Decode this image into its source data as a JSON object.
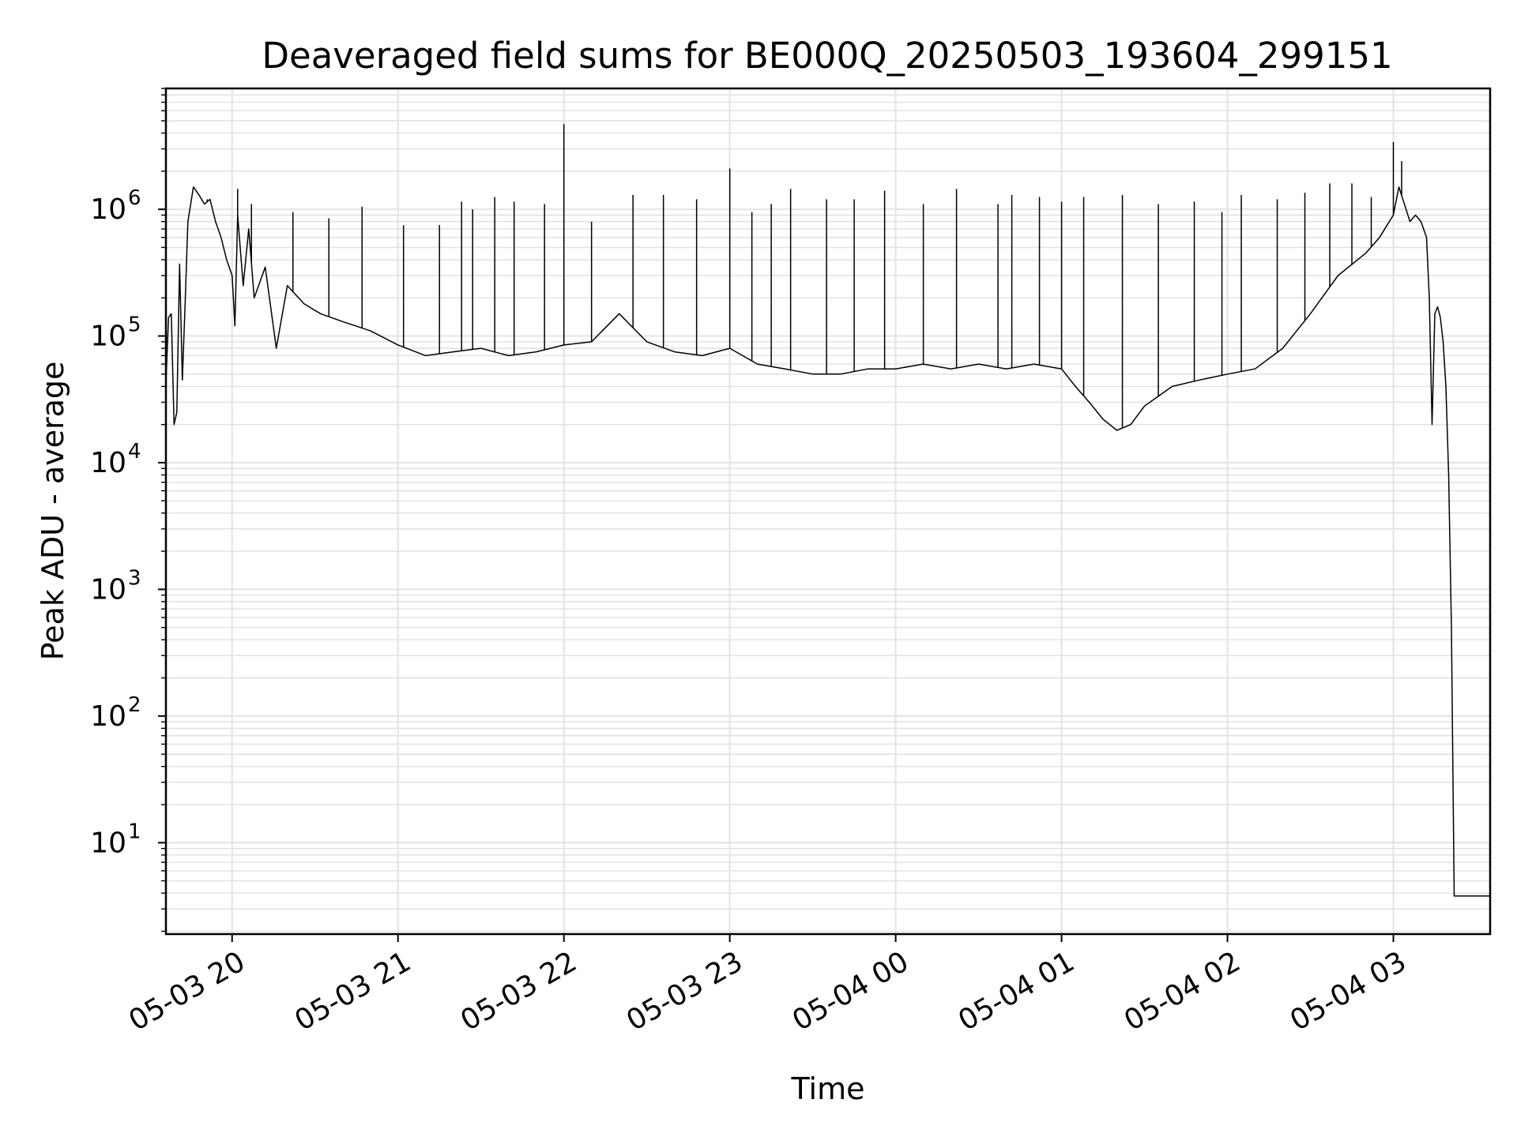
{
  "chart_data": {
    "type": "line",
    "title": "Deaveraged field sums for BE000Q_20250503_193604_299151",
    "xlabel": "Time",
    "ylabel": "Peak ADU - average",
    "yscale": "log",
    "ylim": [
      1.9,
      9000000
    ],
    "xlim": [
      "2025-05-03 19:36:04",
      "2025-05-04 03:35:00"
    ],
    "x_ticks": [
      {
        "t": "2025-05-03 20:00",
        "label": "05-03 20"
      },
      {
        "t": "2025-05-03 21:00",
        "label": "05-03 21"
      },
      {
        "t": "2025-05-03 22:00",
        "label": "05-03 22"
      },
      {
        "t": "2025-05-03 23:00",
        "label": "05-03 23"
      },
      {
        "t": "2025-05-04 00:00",
        "label": "05-04 00"
      },
      {
        "t": "2025-05-04 01:00",
        "label": "05-04 01"
      },
      {
        "t": "2025-05-04 02:00",
        "label": "05-04 02"
      },
      {
        "t": "2025-05-04 03:00",
        "label": "05-04 03"
      }
    ],
    "y_ticks": [
      {
        "value": 10,
        "base": "10",
        "exp": "1"
      },
      {
        "value": 100,
        "base": "10",
        "exp": "2"
      },
      {
        "value": 1000,
        "base": "10",
        "exp": "3"
      },
      {
        "value": 10000,
        "base": "10",
        "exp": "4"
      },
      {
        "value": 100000,
        "base": "10",
        "exp": "5"
      },
      {
        "value": 1000000,
        "base": "10",
        "exp": "6"
      }
    ],
    "grid": true,
    "line_color": "#000000",
    "grid_color": "#e3e3e3",
    "series": [
      {
        "points": [
          [
            "2025-05-03 19:36",
            40000
          ],
          [
            "2025-05-03 19:37",
            140000
          ],
          [
            "2025-05-03 19:38",
            150000
          ],
          [
            "2025-05-03 19:39",
            20000
          ],
          [
            "2025-05-03 19:40",
            25000
          ],
          [
            "2025-05-03 19:41",
            370000
          ],
          [
            "2025-05-03 19:42",
            45000
          ],
          [
            "2025-05-03 19:43",
            180000
          ],
          [
            "2025-05-03 19:44",
            800000
          ],
          [
            "2025-05-03 19:46",
            1500000
          ],
          [
            "2025-05-03 19:48",
            1300000
          ],
          [
            "2025-05-03 19:50",
            1100000
          ],
          [
            "2025-05-03 19:52",
            1200000
          ],
          [
            "2025-05-03 19:54",
            800000
          ],
          [
            "2025-05-03 19:56",
            600000
          ],
          [
            "2025-05-03 19:58",
            400000
          ],
          [
            "2025-05-03 20:00",
            300000
          ],
          [
            "2025-05-03 20:01",
            120000
          ],
          [
            "2025-05-03 20:02",
            900000
          ],
          [
            "2025-05-03 20:04",
            250000
          ],
          [
            "2025-05-03 20:06",
            700000
          ],
          [
            "2025-05-03 20:08",
            200000
          ],
          [
            "2025-05-03 20:12",
            350000
          ],
          [
            "2025-05-03 20:16",
            80000
          ],
          [
            "2025-05-03 20:20",
            250000
          ],
          [
            "2025-05-03 20:26",
            180000
          ],
          [
            "2025-05-03 20:32",
            150000
          ],
          [
            "2025-05-03 20:40",
            130000
          ],
          [
            "2025-05-03 20:50",
            110000
          ],
          [
            "2025-05-03 21:00",
            85000
          ],
          [
            "2025-05-03 21:10",
            70000
          ],
          [
            "2025-05-03 21:20",
            75000
          ],
          [
            "2025-05-03 21:30",
            80000
          ],
          [
            "2025-05-03 21:40",
            70000
          ],
          [
            "2025-05-03 21:50",
            75000
          ],
          [
            "2025-05-03 22:00",
            85000
          ],
          [
            "2025-05-03 22:10",
            90000
          ],
          [
            "2025-05-03 22:20",
            150000
          ],
          [
            "2025-05-03 22:30",
            90000
          ],
          [
            "2025-05-03 22:40",
            75000
          ],
          [
            "2025-05-03 22:50",
            70000
          ],
          [
            "2025-05-03 23:00",
            80000
          ],
          [
            "2025-05-03 23:10",
            60000
          ],
          [
            "2025-05-03 23:20",
            55000
          ],
          [
            "2025-05-03 23:30",
            50000
          ],
          [
            "2025-05-03 23:40",
            50000
          ],
          [
            "2025-05-03 23:50",
            55000
          ],
          [
            "2025-05-04 00:00",
            55000
          ],
          [
            "2025-05-04 00:10",
            60000
          ],
          [
            "2025-05-04 00:20",
            55000
          ],
          [
            "2025-05-04 00:30",
            60000
          ],
          [
            "2025-05-04 00:40",
            55000
          ],
          [
            "2025-05-04 00:50",
            60000
          ],
          [
            "2025-05-04 01:00",
            55000
          ],
          [
            "2025-05-04 01:05",
            40000
          ],
          [
            "2025-05-04 01:10",
            30000
          ],
          [
            "2025-05-04 01:15",
            22000
          ],
          [
            "2025-05-04 01:20",
            18000
          ],
          [
            "2025-05-04 01:25",
            20000
          ],
          [
            "2025-05-04 01:30",
            28000
          ],
          [
            "2025-05-04 01:40",
            40000
          ],
          [
            "2025-05-04 01:50",
            45000
          ],
          [
            "2025-05-04 02:00",
            50000
          ],
          [
            "2025-05-04 02:10",
            55000
          ],
          [
            "2025-05-04 02:20",
            80000
          ],
          [
            "2025-05-04 02:30",
            150000
          ],
          [
            "2025-05-04 02:40",
            300000
          ],
          [
            "2025-05-04 02:50",
            450000
          ],
          [
            "2025-05-04 02:55",
            600000
          ],
          [
            "2025-05-04 03:00",
            900000
          ],
          [
            "2025-05-04 03:02",
            1500000
          ],
          [
            "2025-05-04 03:04",
            1100000
          ],
          [
            "2025-05-04 03:06",
            800000
          ],
          [
            "2025-05-04 03:08",
            900000
          ],
          [
            "2025-05-04 03:10",
            800000
          ],
          [
            "2025-05-04 03:12",
            600000
          ],
          [
            "2025-05-04 03:13",
            200000
          ],
          [
            "2025-05-04 03:14",
            20000
          ],
          [
            "2025-05-04 03:15",
            150000
          ],
          [
            "2025-05-04 03:16",
            170000
          ],
          [
            "2025-05-04 03:17",
            140000
          ],
          [
            "2025-05-04 03:18",
            90000
          ],
          [
            "2025-05-04 03:19",
            40000
          ],
          [
            "2025-05-04 03:20",
            8000
          ],
          [
            "2025-05-04 03:21",
            500
          ],
          [
            "2025-05-04 03:22",
            3.8
          ],
          [
            "2025-05-04 03:25",
            3.8
          ],
          [
            "2025-05-04 03:30",
            3.8
          ],
          [
            "2025-05-04 03:35",
            3.8
          ]
        ],
        "spikes": [
          [
            "2025-05-03 19:51",
            1200000
          ],
          [
            "2025-05-03 20:02",
            1450000
          ],
          [
            "2025-05-03 20:07",
            1100000
          ],
          [
            "2025-05-03 20:22",
            950000
          ],
          [
            "2025-05-03 20:35",
            850000
          ],
          [
            "2025-05-03 20:47",
            1050000
          ],
          [
            "2025-05-03 21:02",
            750000
          ],
          [
            "2025-05-03 21:15",
            750000
          ],
          [
            "2025-05-03 21:23",
            1150000
          ],
          [
            "2025-05-03 21:27",
            1000000
          ],
          [
            "2025-05-03 21:35",
            1250000
          ],
          [
            "2025-05-03 21:42",
            1150000
          ],
          [
            "2025-05-03 21:53",
            1100000
          ],
          [
            "2025-05-03 22:00",
            4700000
          ],
          [
            "2025-05-03 22:10",
            800000
          ],
          [
            "2025-05-03 22:25",
            1300000
          ],
          [
            "2025-05-03 22:36",
            1300000
          ],
          [
            "2025-05-03 22:48",
            1200000
          ],
          [
            "2025-05-03 23:00",
            2100000
          ],
          [
            "2025-05-03 23:08",
            950000
          ],
          [
            "2025-05-03 23:15",
            1100000
          ],
          [
            "2025-05-03 23:22",
            1450000
          ],
          [
            "2025-05-03 23:35",
            1200000
          ],
          [
            "2025-05-03 23:45",
            1200000
          ],
          [
            "2025-05-03 23:56",
            1400000
          ],
          [
            "2025-05-04 00:10",
            1100000
          ],
          [
            "2025-05-04 00:22",
            1450000
          ],
          [
            "2025-05-04 00:37",
            1100000
          ],
          [
            "2025-05-04 00:42",
            1300000
          ],
          [
            "2025-05-04 00:52",
            1250000
          ],
          [
            "2025-05-04 01:00",
            1150000
          ],
          [
            "2025-05-04 01:08",
            1250000
          ],
          [
            "2025-05-04 01:22",
            1300000
          ],
          [
            "2025-05-04 01:35",
            1100000
          ],
          [
            "2025-05-04 01:48",
            1150000
          ],
          [
            "2025-05-04 01:58",
            950000
          ],
          [
            "2025-05-04 02:05",
            1300000
          ],
          [
            "2025-05-04 02:18",
            1200000
          ],
          [
            "2025-05-04 02:28",
            1350000
          ],
          [
            "2025-05-04 02:37",
            1600000
          ],
          [
            "2025-05-04 02:45",
            1600000
          ],
          [
            "2025-05-04 02:52",
            1250000
          ],
          [
            "2025-05-04 03:00",
            3400000
          ],
          [
            "2025-05-04 03:03",
            2400000
          ]
        ]
      }
    ]
  }
}
